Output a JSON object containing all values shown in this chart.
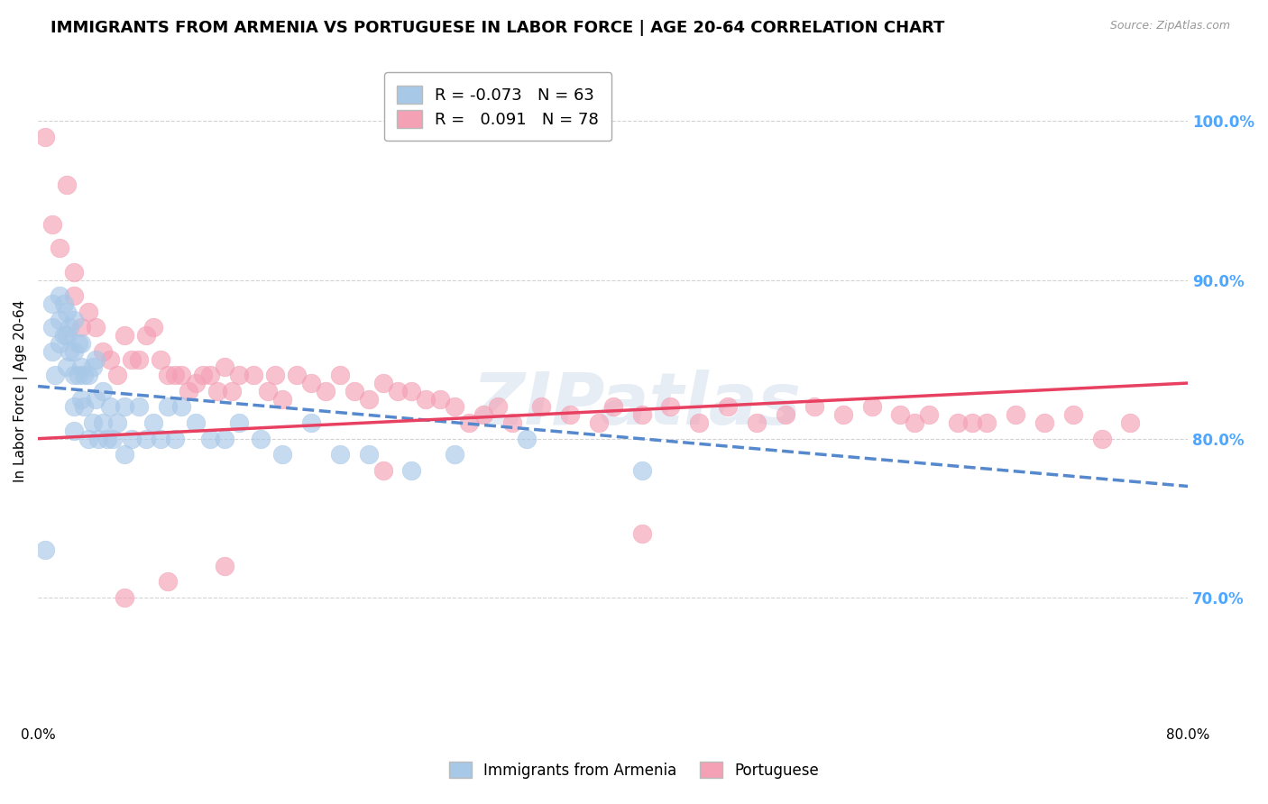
{
  "title": "IMMIGRANTS FROM ARMENIA VS PORTUGUESE IN LABOR FORCE | AGE 20-64 CORRELATION CHART",
  "source": "Source: ZipAtlas.com",
  "ylabel": "In Labor Force | Age 20-64",
  "right_ytick_labels": [
    "70.0%",
    "80.0%",
    "90.0%",
    "100.0%"
  ],
  "right_ytick_values": [
    0.7,
    0.8,
    0.9,
    1.0
  ],
  "xlim": [
    0.0,
    0.8
  ],
  "ylim": [
    0.62,
    1.04
  ],
  "armenia_label": "Immigrants from Armenia",
  "portuguese_label": "Portuguese",
  "armenia_color": "#a8c8e8",
  "portuguese_color": "#f4a0b5",
  "armenia_R": -0.073,
  "armenia_N": 63,
  "portuguese_R": 0.091,
  "portuguese_N": 78,
  "title_fontsize": 13,
  "axis_label_fontsize": 11,
  "tick_fontsize": 11,
  "right_tick_color": "#4da6ff",
  "background_color": "#ffffff",
  "grid_color": "#c8c8c8",
  "armenia_x": [
    0.005,
    0.01,
    0.01,
    0.01,
    0.012,
    0.015,
    0.015,
    0.015,
    0.018,
    0.018,
    0.02,
    0.02,
    0.02,
    0.022,
    0.022,
    0.025,
    0.025,
    0.025,
    0.025,
    0.025,
    0.028,
    0.028,
    0.03,
    0.03,
    0.03,
    0.032,
    0.032,
    0.035,
    0.035,
    0.038,
    0.038,
    0.04,
    0.04,
    0.042,
    0.045,
    0.045,
    0.048,
    0.05,
    0.052,
    0.055,
    0.06,
    0.06,
    0.065,
    0.07,
    0.075,
    0.08,
    0.085,
    0.09,
    0.095,
    0.1,
    0.11,
    0.12,
    0.13,
    0.14,
    0.155,
    0.17,
    0.19,
    0.21,
    0.23,
    0.26,
    0.29,
    0.34,
    0.42
  ],
  "armenia_y": [
    0.73,
    0.885,
    0.87,
    0.855,
    0.84,
    0.89,
    0.875,
    0.86,
    0.885,
    0.865,
    0.88,
    0.865,
    0.845,
    0.87,
    0.855,
    0.875,
    0.855,
    0.84,
    0.82,
    0.805,
    0.86,
    0.84,
    0.86,
    0.845,
    0.825,
    0.84,
    0.82,
    0.84,
    0.8,
    0.845,
    0.81,
    0.85,
    0.825,
    0.8,
    0.83,
    0.81,
    0.8,
    0.82,
    0.8,
    0.81,
    0.82,
    0.79,
    0.8,
    0.82,
    0.8,
    0.81,
    0.8,
    0.82,
    0.8,
    0.82,
    0.81,
    0.8,
    0.8,
    0.81,
    0.8,
    0.79,
    0.81,
    0.79,
    0.79,
    0.78,
    0.79,
    0.8,
    0.78
  ],
  "portuguese_x": [
    0.005,
    0.01,
    0.015,
    0.02,
    0.025,
    0.025,
    0.03,
    0.035,
    0.04,
    0.045,
    0.05,
    0.055,
    0.06,
    0.065,
    0.07,
    0.075,
    0.08,
    0.085,
    0.09,
    0.095,
    0.1,
    0.105,
    0.11,
    0.115,
    0.12,
    0.125,
    0.13,
    0.135,
    0.14,
    0.15,
    0.16,
    0.165,
    0.17,
    0.18,
    0.19,
    0.2,
    0.21,
    0.22,
    0.23,
    0.24,
    0.25,
    0.26,
    0.27,
    0.28,
    0.29,
    0.3,
    0.31,
    0.32,
    0.33,
    0.35,
    0.37,
    0.39,
    0.4,
    0.42,
    0.44,
    0.46,
    0.48,
    0.5,
    0.52,
    0.54,
    0.56,
    0.58,
    0.6,
    0.61,
    0.62,
    0.64,
    0.65,
    0.66,
    0.68,
    0.7,
    0.72,
    0.74,
    0.76,
    0.24,
    0.42,
    0.13,
    0.09,
    0.06
  ],
  "portuguese_y": [
    0.99,
    0.935,
    0.92,
    0.96,
    0.89,
    0.905,
    0.87,
    0.88,
    0.87,
    0.855,
    0.85,
    0.84,
    0.865,
    0.85,
    0.85,
    0.865,
    0.87,
    0.85,
    0.84,
    0.84,
    0.84,
    0.83,
    0.835,
    0.84,
    0.84,
    0.83,
    0.845,
    0.83,
    0.84,
    0.84,
    0.83,
    0.84,
    0.825,
    0.84,
    0.835,
    0.83,
    0.84,
    0.83,
    0.825,
    0.835,
    0.83,
    0.83,
    0.825,
    0.825,
    0.82,
    0.81,
    0.815,
    0.82,
    0.81,
    0.82,
    0.815,
    0.81,
    0.82,
    0.815,
    0.82,
    0.81,
    0.82,
    0.81,
    0.815,
    0.82,
    0.815,
    0.82,
    0.815,
    0.81,
    0.815,
    0.81,
    0.81,
    0.81,
    0.815,
    0.81,
    0.815,
    0.8,
    0.81,
    0.78,
    0.74,
    0.72,
    0.71,
    0.7
  ],
  "arm_trend_x": [
    0.0,
    0.8
  ],
  "arm_trend_y": [
    0.833,
    0.77
  ],
  "por_trend_x": [
    0.0,
    0.8
  ],
  "por_trend_y": [
    0.8,
    0.835
  ]
}
